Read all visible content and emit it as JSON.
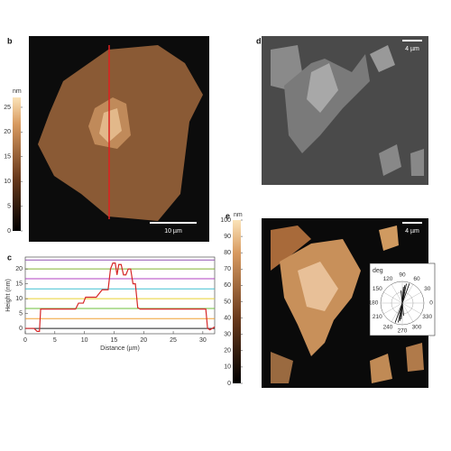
{
  "panels": {
    "b": {
      "label": "b",
      "colorbar": {
        "unit": "nm",
        "lim": [
          0,
          27
        ],
        "ticks": [
          0,
          5,
          10,
          15,
          20,
          25
        ]
      },
      "scale_bar": "10 µm"
    },
    "c": {
      "label": "c",
      "chart": {
        "type": "line",
        "xlabel": "Distance (µm)",
        "ylabel": "Height (nm)",
        "xlim": [
          0,
          32
        ],
        "ylim": [
          -1.8,
          24
        ],
        "xticks": [
          0,
          5,
          10,
          15,
          20,
          25,
          30
        ],
        "yticks": [
          0,
          5,
          10,
          15,
          20
        ],
        "levels": [
          {
            "value": 0,
            "color": "#222222"
          },
          {
            "value": 3.3,
            "color": "#f0a030"
          },
          {
            "value": 6.7,
            "color": "#6cbf3a"
          },
          {
            "value": 10,
            "color": "#e8d030"
          },
          {
            "value": 13.3,
            "color": "#40c0d0"
          },
          {
            "value": 16.7,
            "color": "#b040c0"
          },
          {
            "value": 20,
            "color": "#80b030"
          },
          {
            "value": 23,
            "color": "#9050b0"
          }
        ],
        "color": "#d62728",
        "x": [
          0,
          1.5,
          2,
          2.4,
          2.6,
          5,
          8.5,
          9,
          9.8,
          10.2,
          12,
          12.4,
          13,
          14,
          14.4,
          14.8,
          15.2,
          15.5,
          15.8,
          16.2,
          16.6,
          17,
          17.4,
          17.8,
          18.2,
          18.6,
          19,
          19.4,
          25,
          30.5,
          30.8,
          31.2,
          32
        ],
        "values": [
          0,
          0,
          -1,
          -1,
          6.5,
          6.5,
          6.5,
          8.5,
          8.5,
          10.5,
          10.5,
          11.5,
          13,
          13,
          20,
          22,
          22,
          18,
          21.5,
          21.5,
          18,
          18,
          20,
          20,
          15,
          15,
          7,
          6.5,
          6.5,
          6.5,
          0,
          -0.5,
          0.5
        ]
      }
    },
    "d": {
      "label": "d",
      "scale_bar": "4 µm"
    },
    "e": {
      "label": "e",
      "colorbar": {
        "unit": "nm",
        "lim": [
          0,
          100
        ],
        "ticks": [
          0,
          10,
          20,
          30,
          40,
          50,
          60,
          70,
          80,
          90,
          100
        ]
      },
      "scale_bar": "4 µm",
      "polar": {
        "unit": "deg",
        "angles": [
          0,
          30,
          60,
          90,
          120,
          150,
          180,
          210,
          240,
          270,
          300,
          330
        ]
      }
    }
  }
}
